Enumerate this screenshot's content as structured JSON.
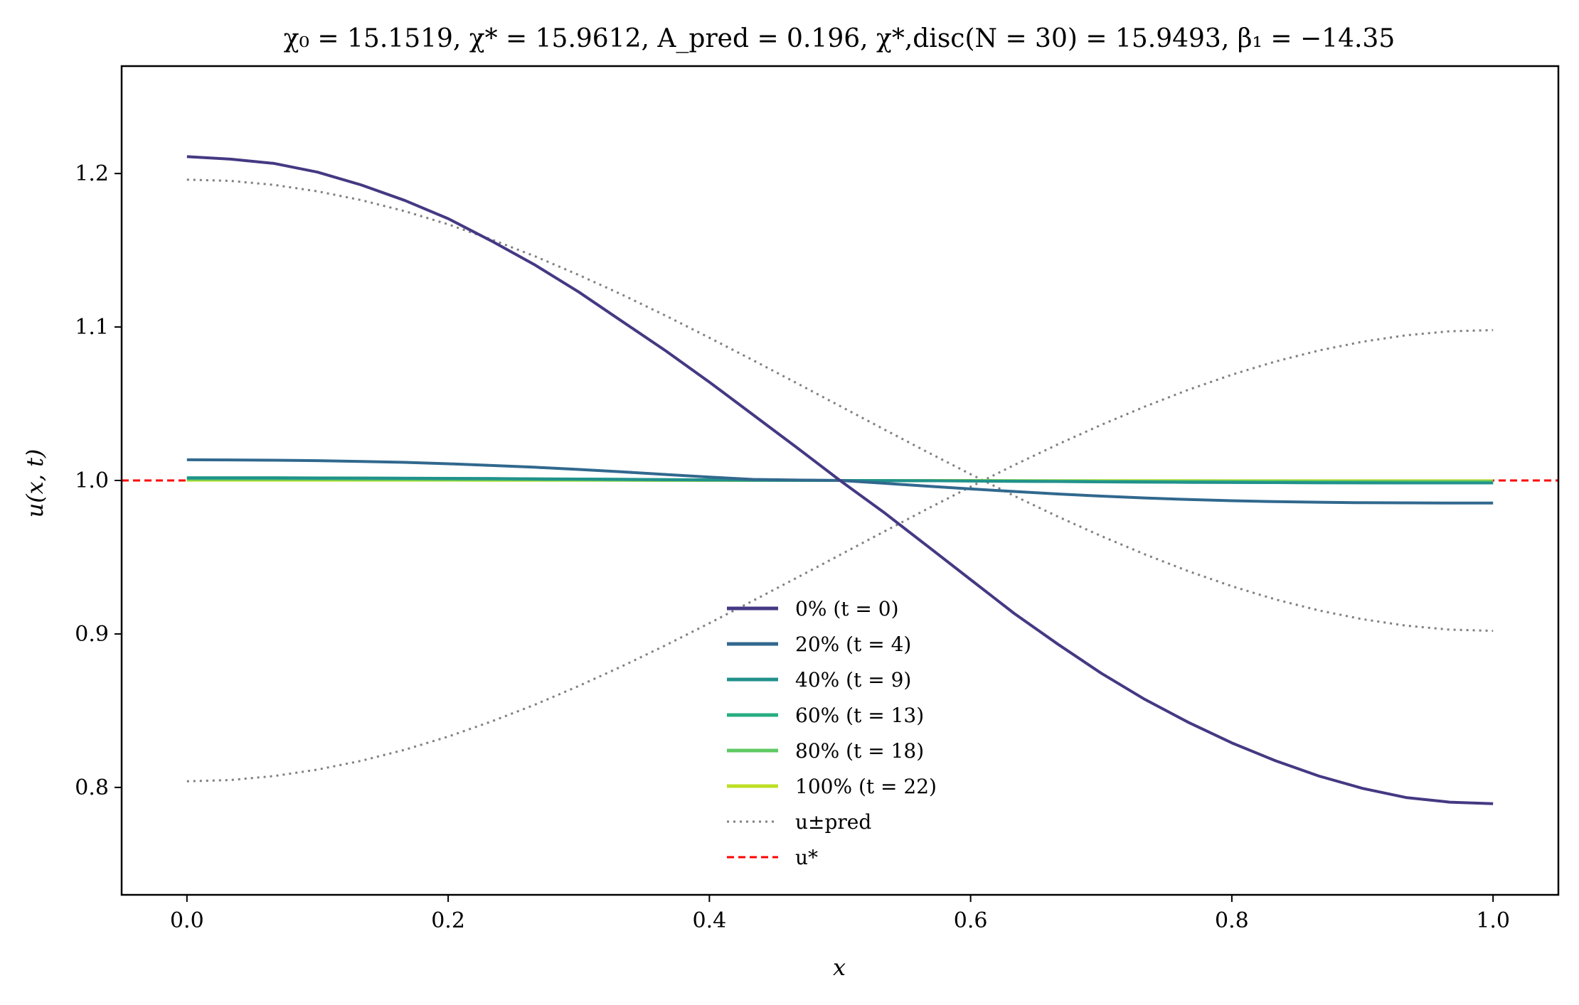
{
  "chart_data": {
    "type": "line",
    "title": "χ₀ = 15.1519,  χ* = 15.9612,  A_pred = 0.196,  χ*,disc(N = 30) = 15.9493,  β₁ = −14.35",
    "xlabel": "x",
    "ylabel": "u(x, t)",
    "xlim": [
      -0.05,
      1.05
    ],
    "ylim": [
      0.73,
      1.27
    ],
    "xticks": [
      0.0,
      0.2,
      0.4,
      0.6,
      0.8,
      1.0
    ],
    "xtick_labels": [
      "0.0",
      "0.2",
      "0.4",
      "0.6",
      "0.8",
      "1.0"
    ],
    "yticks": [
      0.8,
      0.9,
      1.0,
      1.1,
      1.2
    ],
    "ytick_labels": [
      "0.8",
      "0.9",
      "1.0",
      "1.1",
      "1.2"
    ],
    "grid": false,
    "legend_position": "lower-center",
    "x": [
      0.0,
      0.0333,
      0.0667,
      0.1,
      0.1333,
      0.1667,
      0.2,
      0.2333,
      0.2667,
      0.3,
      0.3333,
      0.3667,
      0.4,
      0.4333,
      0.4667,
      0.5,
      0.5333,
      0.5667,
      0.6,
      0.6333,
      0.6667,
      0.7,
      0.7333,
      0.7667,
      0.8,
      0.8333,
      0.8667,
      0.9,
      0.9333,
      0.9667,
      1.0
    ],
    "series": [
      {
        "name": "0% (t = 0)",
        "color": "#443983",
        "style": "solid",
        "values": [
          1.211,
          1.2094,
          1.2066,
          1.2009,
          1.1926,
          1.1825,
          1.1706,
          1.156,
          1.1403,
          1.1228,
          1.1036,
          1.0844,
          1.0641,
          1.0429,
          1.0216,
          1.0,
          0.9794,
          0.9574,
          0.9354,
          0.9134,
          0.8934,
          0.8744,
          0.8574,
          0.8424,
          0.829,
          0.8174,
          0.8074,
          0.7994,
          0.7934,
          0.7904,
          0.7894
        ]
      },
      {
        "name": "20% (t = 4)",
        "color": "#31688e",
        "style": "solid",
        "values": [
          1.0135,
          1.0134,
          1.0132,
          1.0129,
          1.0124,
          1.0118,
          1.0109,
          1.0098,
          1.0086,
          1.0072,
          1.0056,
          1.0039,
          1.0022,
          1.0007,
          1.0003,
          1.0,
          0.9982,
          0.9963,
          0.9945,
          0.9928,
          0.9912,
          0.9898,
          0.9886,
          0.9876,
          0.9868,
          0.9862,
          0.9858,
          0.9855,
          0.9854,
          0.9853,
          0.9853
        ]
      },
      {
        "name": "40% (t = 9)",
        "color": "#21918c",
        "style": "solid",
        "values": [
          1.0016,
          1.0016,
          1.0016,
          1.0015,
          1.0015,
          1.0014,
          1.0013,
          1.0012,
          1.001,
          1.0009,
          1.0007,
          1.0005,
          1.0003,
          1.0002,
          1.0001,
          1.0,
          0.9999,
          0.9998,
          0.9997,
          0.9995,
          0.9993,
          0.9991,
          0.999,
          0.9988,
          0.9987,
          0.9986,
          0.9985,
          0.9985,
          0.9984,
          0.9984,
          0.9984
        ]
      },
      {
        "name": "60% (t = 13)",
        "color": "#27ad81",
        "style": "solid",
        "values": [
          1.0018,
          1.0018,
          1.0018,
          1.0017,
          1.0016,
          1.0015,
          1.0014,
          1.0013,
          1.0011,
          1.0009,
          1.0008,
          1.0006,
          1.0004,
          1.0002,
          1.0001,
          1.0,
          0.9999,
          0.9998,
          0.9996,
          0.9994,
          0.9993,
          0.9991,
          0.9989,
          0.9988,
          0.9987,
          0.9986,
          0.9985,
          0.9984,
          0.9984,
          0.9984,
          0.9984
        ]
      },
      {
        "name": "80% (t = 18)",
        "color": "#5ec962",
        "style": "solid",
        "values": [
          1.0008,
          1.0008,
          1.0008,
          1.0008,
          1.0007,
          1.0007,
          1.0006,
          1.0006,
          1.0005,
          1.0004,
          1.0003,
          1.0002,
          1.0002,
          1.0001,
          1.0,
          1.0,
          1.0,
          0.9999,
          0.9998,
          0.9998,
          0.9997,
          0.9996,
          0.9995,
          0.9995,
          0.9994,
          0.9994,
          0.9993,
          0.9993,
          0.9993,
          0.9993,
          0.9993
        ]
      },
      {
        "name": "100% (t = 22)",
        "color": "#bddf26",
        "style": "solid",
        "values": [
          1.0002,
          1.0002,
          1.0002,
          1.0002,
          1.0002,
          1.0002,
          1.0002,
          1.0001,
          1.0001,
          1.0001,
          1.0001,
          1.0,
          1.0,
          1.0,
          1.0,
          1.0,
          1.0,
          1.0,
          1.0,
          0.9999,
          0.9999,
          0.9999,
          0.9999,
          0.9999,
          0.9998,
          0.9998,
          0.9998,
          0.9998,
          0.9998,
          0.9998,
          0.9998
        ]
      },
      {
        "name": "u±pred",
        "color": "#808080",
        "style": "dotted",
        "values": [
          1.196,
          1.1952,
          1.1926,
          1.1884,
          1.1827,
          1.1755,
          1.1669,
          1.157,
          1.146,
          1.1339,
          1.121,
          1.1073,
          1.093,
          1.0784,
          1.0635,
          1.0485,
          1.0335,
          1.0186,
          1.0041,
          0.99,
          0.9765,
          0.9638,
          0.9519,
          0.9409,
          0.9311,
          0.9225,
          0.9153,
          0.9096,
          0.9054,
          0.9028,
          0.902
        ]
      },
      {
        "name": "",
        "color": "#808080",
        "style": "dotted",
        "values": [
          0.804,
          0.8048,
          0.8074,
          0.8116,
          0.8173,
          0.8245,
          0.8331,
          0.843,
          0.854,
          0.8661,
          0.879,
          0.8927,
          0.907,
          0.9216,
          0.9365,
          0.9515,
          0.9665,
          0.9814,
          0.9959,
          1.01,
          1.0235,
          1.0362,
          1.0481,
          1.0591,
          1.0689,
          1.0775,
          1.0847,
          1.0904,
          1.0946,
          1.0972,
          1.098
        ]
      },
      {
        "name": "u*",
        "color": "#ff0000",
        "style": "dashed",
        "constant": 1.0
      }
    ]
  },
  "legend": {
    "entries": [
      {
        "label": "0% (t = 0)",
        "color": "#443983",
        "style": "solid"
      },
      {
        "label": "20% (t = 4)",
        "color": "#31688e",
        "style": "solid"
      },
      {
        "label": "40% (t = 9)",
        "color": "#21918c",
        "style": "solid"
      },
      {
        "label": "60% (t = 13)",
        "color": "#27ad81",
        "style": "solid"
      },
      {
        "label": "80% (t = 18)",
        "color": "#5ec962",
        "style": "solid"
      },
      {
        "label": "100% (t = 22)",
        "color": "#bddf26",
        "style": "solid"
      },
      {
        "label": "u±pred",
        "color": "#808080",
        "style": "dotted"
      },
      {
        "label": "u*",
        "color": "#ff0000",
        "style": "dashed"
      }
    ]
  }
}
